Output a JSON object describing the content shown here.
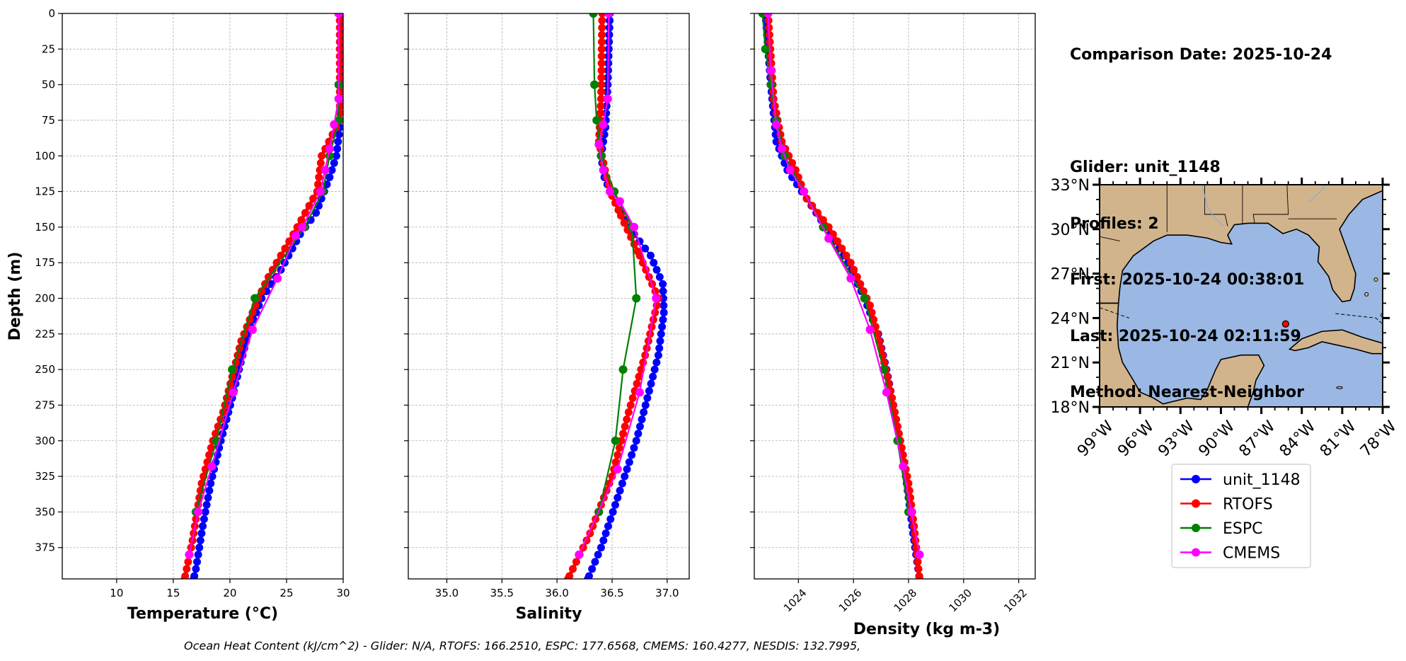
{
  "info": {
    "comparison_date": "Comparison Date: 2025-10-24",
    "glider": "Glider: unit_1148",
    "profiles": "Profiles: 2",
    "first": "First: 2025-10-24 00:38:01",
    "last": "Last: 2025-10-24 02:11:59",
    "method": "Method: Nearest-Neighbor"
  },
  "footer": "Ocean Heat Content (kJ/cm^2) - Glider: N/A,  RTOFS: 166.2510,  ESPC: 177.6568,  CMEMS: 160.4277,  NESDIS: 132.7995,",
  "legend": [
    {
      "label": "unit_1148",
      "color": "#0000ff"
    },
    {
      "label": "RTOFS",
      "color": "#ff0000"
    },
    {
      "label": "ESPC",
      "color": "#008000"
    },
    {
      "label": "CMEMS",
      "color": "#ff00ff"
    }
  ],
  "map": {
    "lat_labels": [
      "33°N",
      "30°N",
      "27°N",
      "24°N",
      "21°N",
      "18°N"
    ],
    "lon_labels": [
      "99°W",
      "96°W",
      "93°W",
      "90°W",
      "87°W",
      "84°W",
      "81°W",
      "78°W"
    ],
    "lat_range": [
      18,
      33
    ],
    "lon_range": [
      -99,
      -78
    ],
    "glider_location": {
      "lon": -85.2,
      "lat": 23.6
    },
    "land_color": "#d2b48c",
    "ocean_color": "#9ab8e3"
  },
  "chart_data": [
    {
      "type": "line",
      "xlabel": "Temperature (°C)",
      "ylabel": "Depth (m)",
      "xlim": [
        5.2,
        30
      ],
      "ylim": [
        397,
        0
      ],
      "xticks": [
        10,
        15,
        20,
        25,
        30
      ],
      "yticks": [
        0,
        25,
        50,
        75,
        100,
        125,
        150,
        175,
        200,
        225,
        250,
        275,
        300,
        325,
        350,
        375
      ],
      "grid": true,
      "series": [
        {
          "name": "unit_1148",
          "color": "#0000ff",
          "marker_spacing": 5,
          "points": [
            [
              29.8,
              0
            ],
            [
              29.8,
              40
            ],
            [
              29.7,
              80
            ],
            [
              29.4,
              100
            ],
            [
              28.8,
              115
            ],
            [
              27.6,
              140
            ],
            [
              26.2,
              155
            ],
            [
              24.5,
              180
            ],
            [
              22.8,
              200
            ],
            [
              21.6,
              225
            ],
            [
              20.8,
              250
            ],
            [
              20.2,
              270
            ],
            [
              19.2,
              300
            ],
            [
              18.3,
              330
            ],
            [
              17.6,
              360
            ],
            [
              17.0,
              390
            ],
            [
              16.8,
              397
            ]
          ]
        },
        {
          "name": "RTOFS",
          "color": "#ff0000",
          "marker_spacing": 5,
          "width": 5,
          "points": [
            [
              29.7,
              0
            ],
            [
              29.7,
              75
            ],
            [
              28.1,
              100
            ],
            [
              27.7,
              125
            ],
            [
              25.6,
              155
            ],
            [
              23.4,
              185
            ],
            [
              22.5,
              200
            ],
            [
              21.0,
              230
            ],
            [
              20.2,
              255
            ],
            [
              19.4,
              280
            ],
            [
              18.5,
              300
            ],
            [
              17.5,
              330
            ],
            [
              16.7,
              370
            ],
            [
              16.0,
              397
            ]
          ]
        },
        {
          "name": "ESPC",
          "color": "#008000",
          "points": [
            [
              29.6,
              0
            ],
            [
              29.6,
              50
            ],
            [
              29.6,
              75
            ],
            [
              28.8,
              100
            ],
            [
              28.2,
              125
            ],
            [
              26.6,
              150
            ],
            [
              22.2,
              200
            ],
            [
              20.2,
              250
            ],
            [
              18.8,
              300
            ],
            [
              17.0,
              350
            ]
          ]
        },
        {
          "name": "CMEMS",
          "color": "#ff00ff",
          "points": [
            [
              29.6,
              0
            ],
            [
              29.6,
              60
            ],
            [
              29.2,
              78
            ],
            [
              28.8,
              95
            ],
            [
              28.4,
              110
            ],
            [
              28.0,
              125
            ],
            [
              26.4,
              150
            ],
            [
              25.8,
              156
            ],
            [
              24.2,
              186
            ],
            [
              22.0,
              222
            ],
            [
              20.3,
              266
            ],
            [
              18.4,
              318
            ],
            [
              17.2,
              350
            ],
            [
              16.4,
              380
            ]
          ]
        }
      ]
    },
    {
      "type": "line",
      "xlabel": "Salinity",
      "ylabel": "",
      "xlim": [
        34.65,
        37.2
      ],
      "ylim": [
        397,
        0
      ],
      "xticks": [
        "35.0",
        "35.5",
        "36.0",
        "36.5",
        "37.0"
      ],
      "yticks": [
        0,
        25,
        50,
        75,
        100,
        125,
        150,
        175,
        200,
        225,
        250,
        275,
        300,
        325,
        350,
        375
      ],
      "grid": true,
      "series": [
        {
          "name": "unit_1148",
          "color": "#0000ff",
          "marker_spacing": 5,
          "points": [
            [
              36.48,
              0
            ],
            [
              36.46,
              50
            ],
            [
              36.44,
              80
            ],
            [
              36.4,
              100
            ],
            [
              36.43,
              115
            ],
            [
              36.5,
              128
            ],
            [
              36.58,
              140
            ],
            [
              36.7,
              155
            ],
            [
              36.85,
              170
            ],
            [
              36.96,
              190
            ],
            [
              36.97,
              210
            ],
            [
              36.92,
              240
            ],
            [
              36.82,
              270
            ],
            [
              36.72,
              300
            ],
            [
              36.55,
              340
            ],
            [
              36.4,
              375
            ],
            [
              36.28,
              397
            ]
          ]
        },
        {
          "name": "RTOFS",
          "color": "#ff0000",
          "marker_spacing": 5,
          "width": 5,
          "points": [
            [
              36.41,
              0
            ],
            [
              36.4,
              60
            ],
            [
              36.38,
              90
            ],
            [
              36.45,
              115
            ],
            [
              36.5,
              128
            ],
            [
              36.58,
              142
            ],
            [
              36.75,
              170
            ],
            [
              36.92,
              200
            ],
            [
              36.8,
              240
            ],
            [
              36.65,
              280
            ],
            [
              36.5,
              325
            ],
            [
              36.3,
              365
            ],
            [
              36.1,
              397
            ]
          ]
        },
        {
          "name": "ESPC",
          "color": "#008000",
          "points": [
            [
              36.33,
              0
            ],
            [
              36.34,
              50
            ],
            [
              36.36,
              75
            ],
            [
              36.4,
              100
            ],
            [
              36.52,
              125
            ],
            [
              36.68,
              150
            ],
            [
              36.72,
              200
            ],
            [
              36.6,
              250
            ],
            [
              36.53,
              300
            ],
            [
              36.38,
              350
            ]
          ]
        },
        {
          "name": "CMEMS",
          "color": "#ff00ff",
          "points": [
            [
              36.47,
              0
            ],
            [
              36.46,
              60
            ],
            [
              36.42,
              78
            ],
            [
              36.38,
              92
            ],
            [
              36.42,
              110
            ],
            [
              36.48,
              125
            ],
            [
              36.57,
              132
            ],
            [
              36.7,
              150
            ],
            [
              36.9,
              200
            ],
            [
              36.75,
              266
            ],
            [
              36.55,
              320
            ],
            [
              36.2,
              380
            ]
          ]
        }
      ]
    },
    {
      "type": "line",
      "xlabel": "Density (kg m-3)",
      "ylabel": "",
      "xlim": [
        1022.4,
        1032.6
      ],
      "ylim": [
        397,
        0
      ],
      "xticks": [
        1024,
        1026,
        1028,
        1030,
        1032
      ],
      "yticks": [
        0,
        25,
        50,
        75,
        100,
        125,
        150,
        175,
        200,
        225,
        250,
        275,
        300,
        325,
        350,
        375
      ],
      "grid": true,
      "series": [
        {
          "name": "unit_1148",
          "color": "#0000ff",
          "marker_spacing": 5,
          "points": [
            [
              1022.8,
              0
            ],
            [
              1023.0,
              50
            ],
            [
              1023.2,
              90
            ],
            [
              1023.6,
              110
            ],
            [
              1024.3,
              130
            ],
            [
              1025.0,
              150
            ],
            [
              1025.8,
              175
            ],
            [
              1026.4,
              200
            ],
            [
              1026.9,
              225
            ],
            [
              1027.2,
              250
            ],
            [
              1027.5,
              280
            ],
            [
              1027.8,
              310
            ],
            [
              1028.0,
              340
            ],
            [
              1028.2,
              370
            ],
            [
              1028.4,
              397
            ]
          ]
        },
        {
          "name": "RTOFS",
          "color": "#ff0000",
          "marker_spacing": 5,
          "width": 5,
          "points": [
            [
              1022.9,
              0
            ],
            [
              1023.1,
              60
            ],
            [
              1023.4,
              90
            ],
            [
              1023.9,
              110
            ],
            [
              1024.3,
              130
            ],
            [
              1025.1,
              150
            ],
            [
              1025.9,
              175
            ],
            [
              1026.6,
              205
            ],
            [
              1027.0,
              235
            ],
            [
              1027.4,
              270
            ],
            [
              1027.7,
              300
            ],
            [
              1028.0,
              330
            ],
            [
              1028.2,
              360
            ],
            [
              1028.4,
              397
            ]
          ]
        },
        {
          "name": "ESPC",
          "color": "#008000",
          "points": [
            [
              1022.7,
              0
            ],
            [
              1022.8,
              25
            ],
            [
              1023.0,
              50
            ],
            [
              1023.2,
              75
            ],
            [
              1023.5,
              100
            ],
            [
              1024.2,
              125
            ],
            [
              1024.9,
              150
            ],
            [
              1026.4,
              200
            ],
            [
              1027.1,
              250
            ],
            [
              1027.6,
              300
            ],
            [
              1028.0,
              350
            ]
          ]
        },
        {
          "name": "CMEMS",
          "color": "#ff00ff",
          "points": [
            [
              1022.9,
              0
            ],
            [
              1023.0,
              40
            ],
            [
              1023.2,
              78
            ],
            [
              1023.4,
              95
            ],
            [
              1023.7,
              110
            ],
            [
              1024.2,
              125
            ],
            [
              1025.1,
              158
            ],
            [
              1025.9,
              186
            ],
            [
              1026.6,
              222
            ],
            [
              1027.2,
              266
            ],
            [
              1027.8,
              318
            ],
            [
              1028.1,
              350
            ],
            [
              1028.4,
              380
            ]
          ]
        }
      ]
    }
  ]
}
